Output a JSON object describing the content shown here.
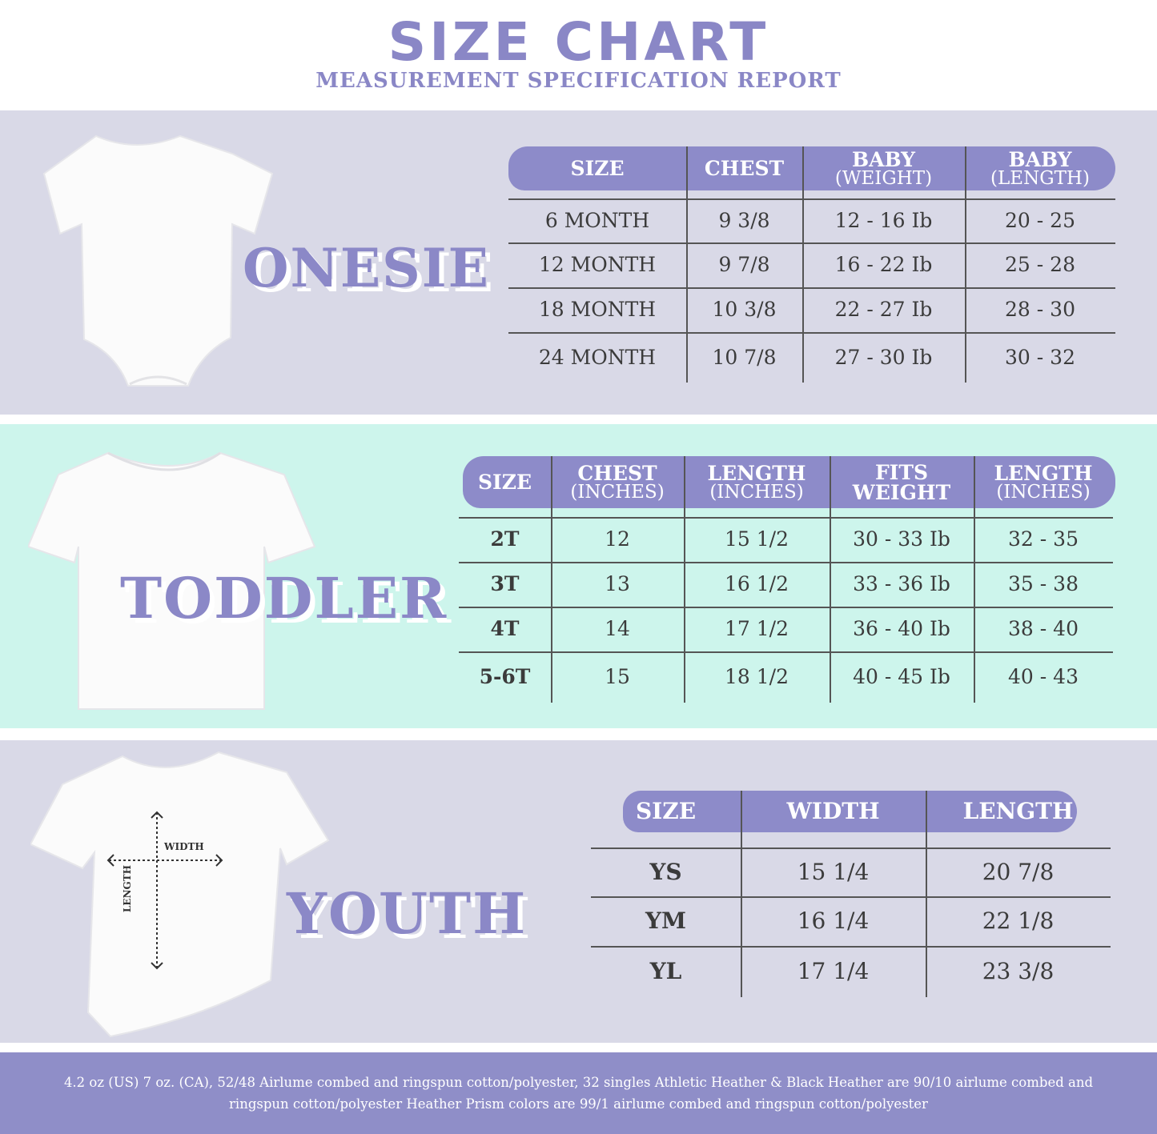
{
  "header": {
    "title": "SIZE CHART",
    "subtitle": "MEASUREMENT SPECIFICATION REPORT"
  },
  "colors": {
    "accent": "#8d8bc9",
    "section_gray": "#d9d9e7",
    "section_mint": "#cdf5ec",
    "text": "#3b3b3b"
  },
  "sections": [
    {
      "label": "ONESIE",
      "garment_icon": "onesie-icon",
      "columns": [
        {
          "title": "SIZE"
        },
        {
          "title": "CHEST"
        },
        {
          "title": "BABY",
          "sub": "(WEIGHT)"
        },
        {
          "title": "BABY",
          "sub": "(LENGTH)"
        }
      ],
      "rows": [
        [
          "6 MONTH",
          "9 3/8",
          "12 - 16 Ib",
          "20 - 25"
        ],
        [
          "12 MONTH",
          "9 7/8",
          "16 - 22 Ib",
          "25 - 28"
        ],
        [
          "18  MONTH",
          "10 3/8",
          "22 - 27 Ib",
          "28 - 30"
        ],
        [
          "24 MONTH",
          "10 7/8",
          "27 - 30 Ib",
          "30 - 32"
        ]
      ]
    },
    {
      "label": "TODDLER",
      "garment_icon": "tshirt-icon",
      "columns": [
        {
          "title": "SIZE"
        },
        {
          "title": "CHEST",
          "sub": "(INCHES)"
        },
        {
          "title": "LENGTH",
          "sub": "(INCHES)"
        },
        {
          "title": "FITS",
          "sub2": "WEIGHT"
        },
        {
          "title": "LENGTH",
          "sub": "(INCHES)"
        }
      ],
      "rows": [
        [
          "2T",
          "12",
          "15 1/2",
          "30 - 33  Ib",
          "32 - 35"
        ],
        [
          "3T",
          "13",
          "16 1/2",
          "33 - 36 Ib",
          "35 - 38"
        ],
        [
          "4T",
          "14",
          "17 1/2",
          "36 - 40 Ib",
          "38 - 40"
        ],
        [
          "5-6T",
          "15",
          "18 1/2",
          "40 - 45 Ib",
          "40 - 43"
        ]
      ]
    },
    {
      "label": "YOUTH",
      "garment_icon": "tshirt-icon",
      "measure_labels": {
        "width": "WIDTH",
        "length": "LENGTH"
      },
      "columns": [
        {
          "title": "SIZE"
        },
        {
          "title": "WIDTH"
        },
        {
          "title": "LENGTH"
        }
      ],
      "rows": [
        [
          "YS",
          "15 1/4",
          "20 7/8"
        ],
        [
          "YM",
          "16 1/4",
          "22 1/8"
        ],
        [
          "YL",
          "17 1/4",
          "23 3/8"
        ]
      ]
    }
  ],
  "footer": {
    "text": "4.2 oz (US) 7 oz. (CA), 52/48 Airlume combed and ringspun cotton/polyester, 32 singles Athletic Heather & Black Heather are 90/10 airlume combed and ringspun cotton/polyester Heather Prism colors are 99/1 airlume combed and ringspun cotton/polyester"
  }
}
